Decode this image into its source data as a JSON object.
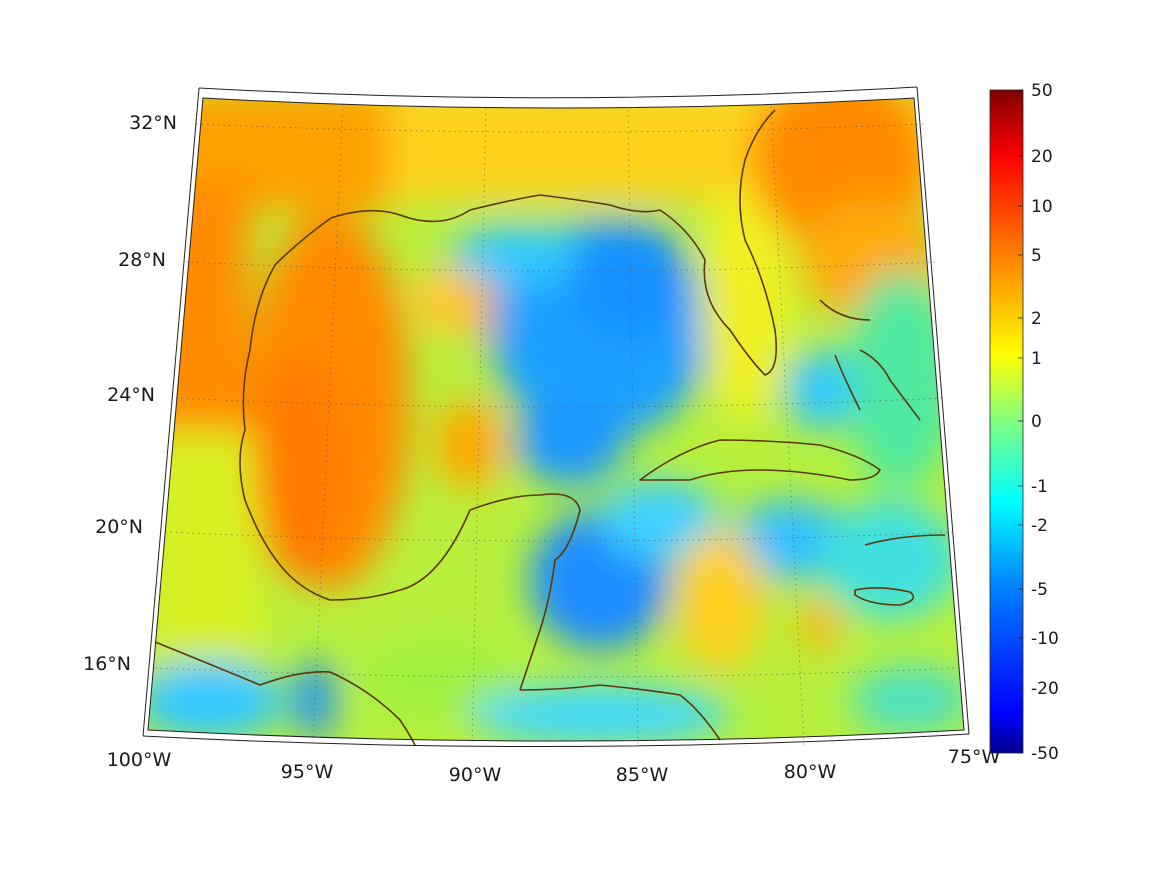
{
  "map": {
    "lat_labels": [
      "32°N",
      "28°N",
      "24°N",
      "20°N",
      "16°N"
    ],
    "lon_labels": [
      "100°W",
      "95°W",
      "90°W",
      "85°W",
      "80°W",
      "75°W"
    ],
    "region_extent": {
      "lon": [
        -100,
        -75
      ],
      "lat": [
        14,
        33
      ]
    },
    "coastline_color": "#5a3a0a",
    "gridlines": "dotted"
  },
  "colorbar": {
    "ticks": [
      "50",
      "20",
      "10",
      "5",
      "2",
      "1",
      "0",
      "-1",
      "-2",
      "-5",
      "-10",
      "-20",
      "-50"
    ],
    "range": [
      -50,
      50
    ],
    "scale": "symmetric-log",
    "colormap": "jet",
    "colors": [
      "#00008f",
      "#0000ff",
      "#0080ff",
      "#00ffff",
      "#80ff80",
      "#ffff00",
      "#ff8000",
      "#ff0000",
      "#800000"
    ]
  }
}
